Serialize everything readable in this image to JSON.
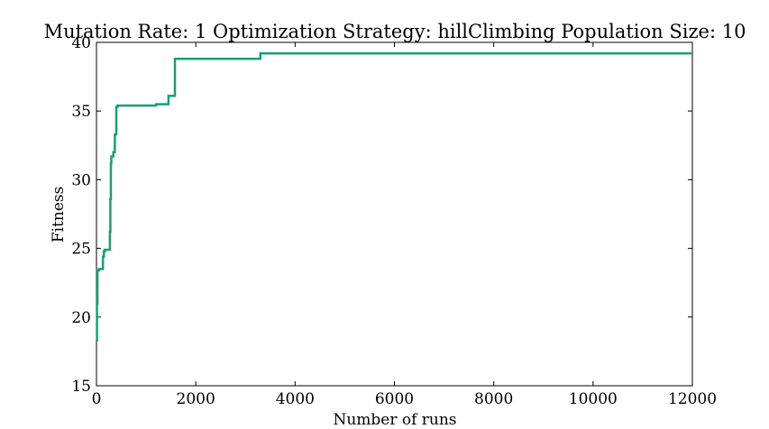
{
  "chart_data": {
    "type": "line",
    "title": "Mutation Rate: 1 Optimization Strategy: hillClimbing Population Size: 10",
    "xlabel": "Number of runs",
    "ylabel": "Fitness",
    "xlim": [
      0,
      12000
    ],
    "ylim": [
      15,
      40
    ],
    "xticks": [
      0,
      2000,
      4000,
      6000,
      8000,
      10000,
      12000
    ],
    "yticks": [
      15,
      20,
      25,
      30,
      35,
      40
    ],
    "grid": false,
    "legend": "none",
    "step": true,
    "series": [
      {
        "color": "#1b9e77",
        "x": [
          0,
          10,
          20,
          50,
          130,
          150,
          170,
          270,
          280,
          290,
          300,
          310,
          340,
          370,
          400,
          420,
          430,
          1200,
          1450,
          1580,
          3300,
          12000
        ],
        "y": [
          18.3,
          21.0,
          23.4,
          23.5,
          24.4,
          24.8,
          24.9,
          26.2,
          28.6,
          31.2,
          31.7,
          31.7,
          32.0,
          33.3,
          35.3,
          35.35,
          35.4,
          35.5,
          36.1,
          38.8,
          39.2,
          39.2
        ]
      }
    ]
  }
}
